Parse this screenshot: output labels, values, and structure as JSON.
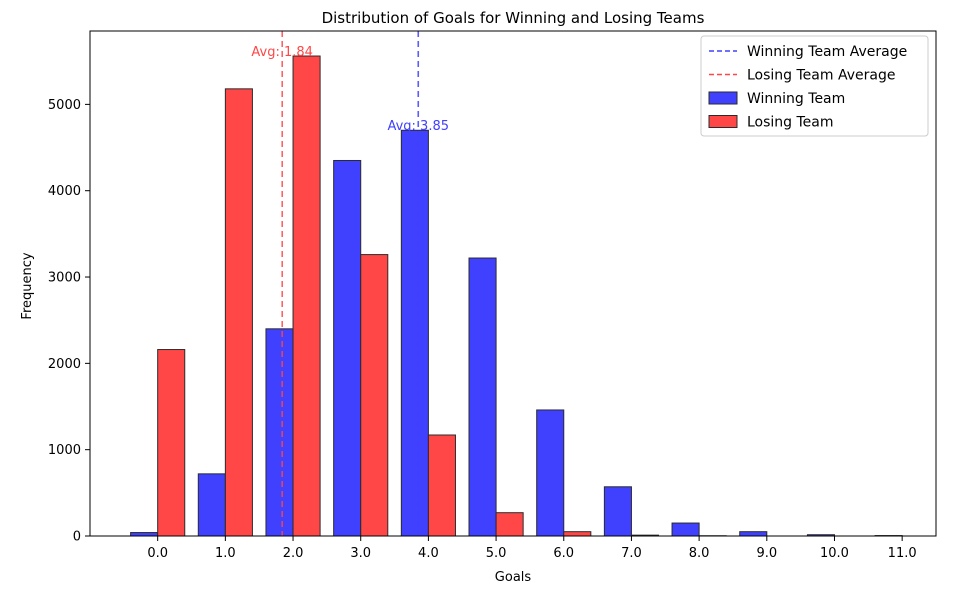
{
  "chart_data": {
    "type": "bar",
    "title": "Distribution of Goals for Winning and Losing Teams",
    "xlabel": "Goals",
    "ylabel": "Frequency",
    "categories": [
      "0.0",
      "1.0",
      "2.0",
      "3.0",
      "4.0",
      "5.0",
      "6.0",
      "7.0",
      "8.0",
      "9.0",
      "10.0",
      "11.0"
    ],
    "x_values": [
      0,
      1,
      2,
      3,
      4,
      5,
      6,
      7,
      8,
      9,
      10,
      11
    ],
    "ylim": [
      0,
      5850
    ],
    "xlim": [
      -1.0,
      11.5
    ],
    "yticks": [
      0,
      1000,
      2000,
      3000,
      4000,
      5000
    ],
    "grid": false,
    "legend_position": "top-right",
    "series": [
      {
        "name": "Winning Team",
        "color": "#4040ff",
        "values": [
          40,
          720,
          2400,
          4350,
          4700,
          3220,
          1460,
          570,
          150,
          50,
          15,
          5
        ]
      },
      {
        "name": "Losing Team",
        "color": "#ff4747",
        "values": [
          2160,
          5180,
          5560,
          3260,
          1170,
          270,
          50,
          10,
          3,
          0,
          0,
          0
        ]
      }
    ],
    "reference_lines": [
      {
        "name": "Winning Team Average",
        "x": 3.85,
        "color": "#4040ff",
        "label": "Avg: 3.85"
      },
      {
        "name": "Losing Team Average",
        "x": 1.84,
        "color": "#ff4747",
        "label": "Avg: 1.84"
      }
    ],
    "legend": [
      {
        "label": "Winning Team Average",
        "kind": "dashed",
        "color": "#4040ff"
      },
      {
        "label": "Losing Team Average",
        "kind": "dashed",
        "color": "#ff4747"
      },
      {
        "label": "Winning Team",
        "kind": "patch",
        "color": "#4040ff"
      },
      {
        "label": "Losing Team",
        "kind": "patch",
        "color": "#ff4747"
      }
    ]
  }
}
